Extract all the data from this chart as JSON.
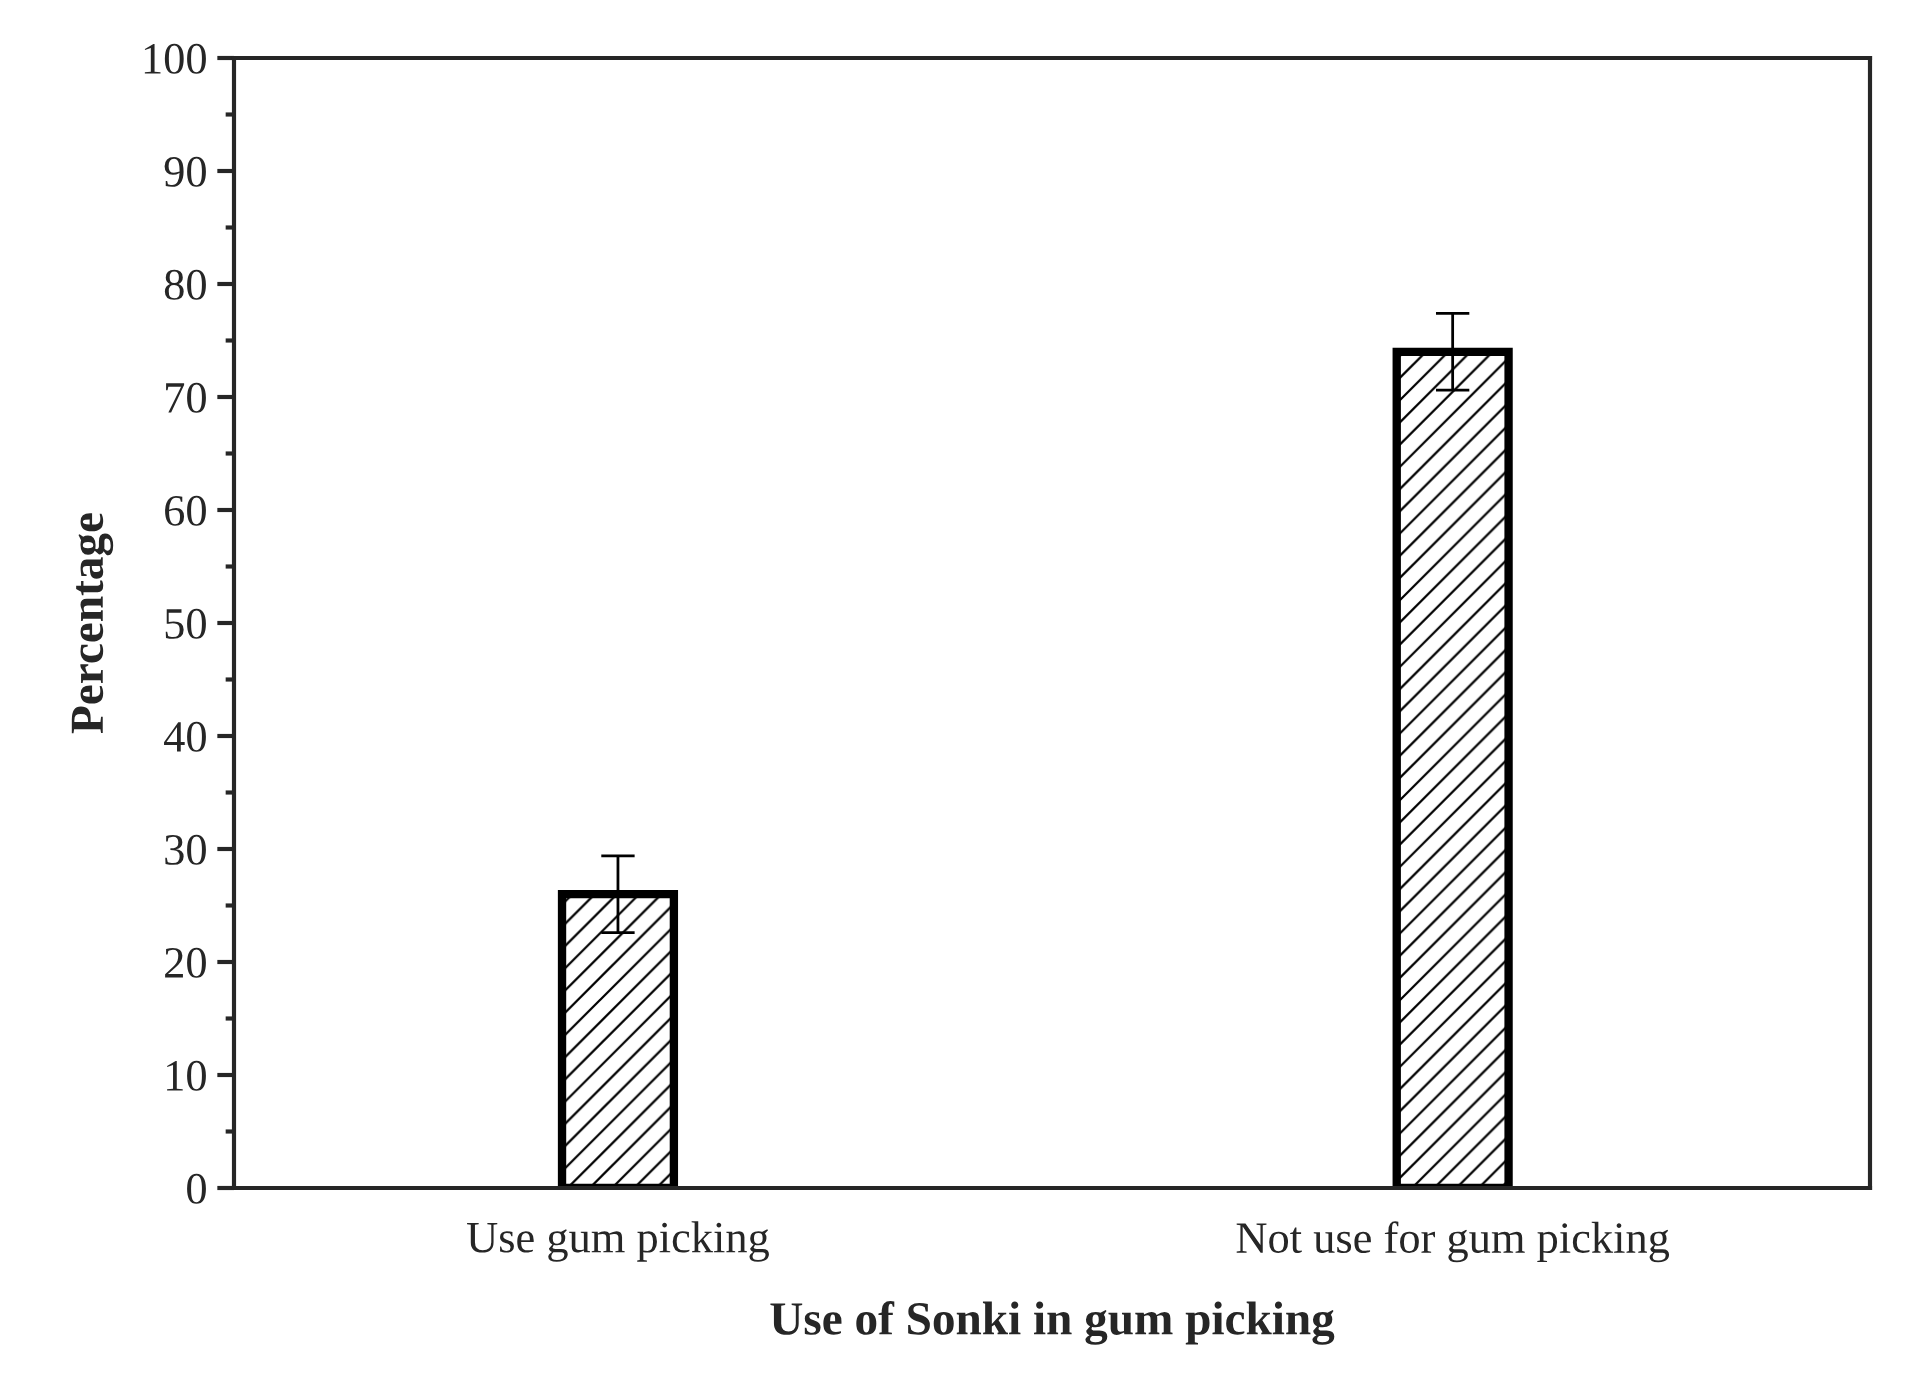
{
  "chart_data": {
    "type": "bar",
    "xlabel": "Use of Sonki in gum picking",
    "ylabel": "Percentage",
    "categories": [
      "Use gum picking",
      "Not use for gum picking"
    ],
    "values": [
      26,
      74
    ],
    "errors": [
      3.4,
      3.4
    ],
    "color": "#000000",
    "ylim": [
      0,
      100
    ],
    "yticks": [
      0,
      10,
      20,
      30,
      40,
      50,
      60,
      70,
      80,
      90,
      100
    ],
    "grid": false,
    "legend": false
  }
}
